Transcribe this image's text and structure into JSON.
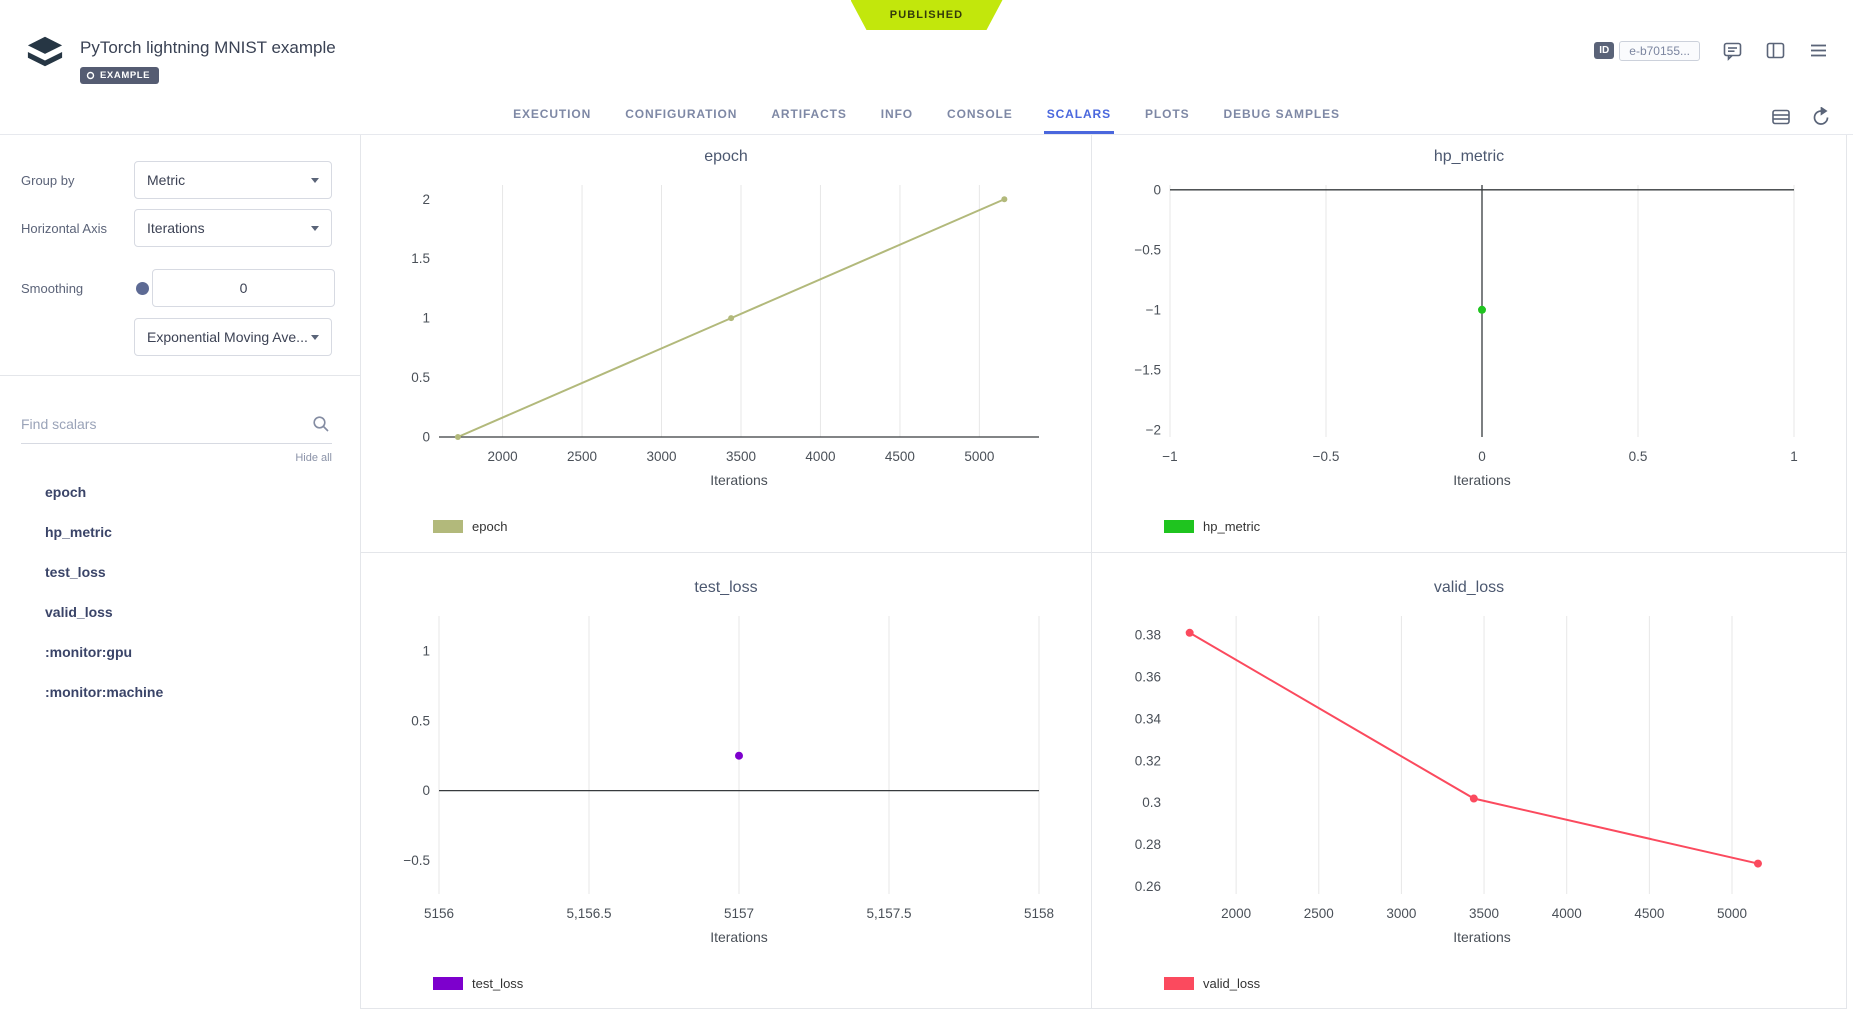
{
  "status_ribbon": "PUBLISHED",
  "header": {
    "title": "PyTorch lightning MNIST example",
    "badge": "EXAMPLE",
    "id_label": "ID",
    "id_value": "e-b70155..."
  },
  "tabs": [
    "EXECUTION",
    "CONFIGURATION",
    "ARTIFACTS",
    "INFO",
    "CONSOLE",
    "SCALARS",
    "PLOTS",
    "DEBUG SAMPLES"
  ],
  "active_tab": "SCALARS",
  "sidebar": {
    "group_by_label": "Group by",
    "group_by_value": "Metric",
    "horizontal_axis_label": "Horizontal Axis",
    "horizontal_axis_value": "Iterations",
    "smoothing_label": "Smoothing",
    "smoothing_value": "0",
    "smoothing_method": "Exponential Moving Ave...",
    "search_placeholder": "Find scalars",
    "hide_all": "Hide all",
    "metrics": [
      "epoch",
      "hp_metric",
      "test_loss",
      "valid_loss",
      ":monitor:gpu",
      ":monitor:machine"
    ]
  },
  "colors": {
    "accent_blue": "#4a67dd",
    "ribbon_lime": "#c2e70c",
    "epoch_line": "#b2b97b",
    "hp_metric_green": "#1fc41f",
    "test_loss_purple": "#7d00cd",
    "valid_loss_red": "#fb4a5e"
  },
  "chart_data": [
    {
      "type": "line",
      "title": "epoch",
      "legend": "epoch",
      "xlabel": "Iterations",
      "color": "#b2b97b",
      "dot_r": 3,
      "x": [
        1719,
        3438,
        5157
      ],
      "y": [
        0,
        1,
        2
      ],
      "xlim": [
        1600,
        5375
      ],
      "ylim": [
        0,
        2.12
      ],
      "xticks": [
        {
          "v": 2000,
          "label": "2000"
        },
        {
          "v": 2500,
          "label": "2500"
        },
        {
          "v": 3000,
          "label": "3000"
        },
        {
          "v": 3500,
          "label": "3500"
        },
        {
          "v": 4000,
          "label": "4000"
        },
        {
          "v": 4500,
          "label": "4500"
        },
        {
          "v": 5000,
          "label": "5000"
        }
      ],
      "yticks": [
        {
          "v": 0,
          "label": "0"
        },
        {
          "v": 0.5,
          "label": "0.5"
        },
        {
          "v": 1,
          "label": "1"
        },
        {
          "v": 1.5,
          "label": "1.5"
        },
        {
          "v": 2,
          "label": "2"
        }
      ]
    },
    {
      "type": "scatter",
      "title": "hp_metric",
      "legend": "hp_metric",
      "xlabel": "Iterations",
      "color": "#1fc41f",
      "dot_r": 4,
      "x": [
        0
      ],
      "y": [
        -1
      ],
      "xlim": [
        -1,
        1
      ],
      "ylim": [
        -2.06,
        0.04
      ],
      "xticks": [
        {
          "v": -1,
          "label": "−1"
        },
        {
          "v": -0.5,
          "label": "−0.5"
        },
        {
          "v": 0,
          "label": "0"
        },
        {
          "v": 0.5,
          "label": "0.5"
        },
        {
          "v": 1,
          "label": "1"
        }
      ],
      "yticks": [
        {
          "v": 0,
          "label": "0"
        },
        {
          "v": -0.5,
          "label": "−0.5"
        },
        {
          "v": -1,
          "label": "−1"
        },
        {
          "v": -1.5,
          "label": "−1.5"
        },
        {
          "v": -2,
          "label": "−2"
        }
      ]
    },
    {
      "type": "scatter",
      "title": "test_loss",
      "legend": "test_loss",
      "xlabel": "Iterations",
      "color": "#7d00cd",
      "dot_r": 4,
      "x": [
        5157
      ],
      "y": [
        0.25
      ],
      "xlim": [
        5156,
        5158
      ],
      "ylim": [
        -0.74,
        1.25
      ],
      "xticks": [
        {
          "v": 5156,
          "label": "5156"
        },
        {
          "v": 5156.5,
          "label": "5,156.5"
        },
        {
          "v": 5157,
          "label": "5157"
        },
        {
          "v": 5157.5,
          "label": "5,157.5"
        },
        {
          "v": 5158,
          "label": "5158"
        }
      ],
      "yticks": [
        {
          "v": 1,
          "label": "1"
        },
        {
          "v": 0.5,
          "label": "0.5"
        },
        {
          "v": 0,
          "label": "0"
        },
        {
          "v": -0.5,
          "label": "−0.5"
        }
      ]
    },
    {
      "type": "line",
      "title": "valid_loss",
      "legend": "valid_loss",
      "xlabel": "Iterations",
      "color": "#fb4a5e",
      "dot_r": 4,
      "x": [
        1719,
        3438,
        5157
      ],
      "y": [
        0.381,
        0.302,
        0.271
      ],
      "xlim": [
        1600,
        5375
      ],
      "ylim": [
        0.2565,
        0.389
      ],
      "xticks": [
        {
          "v": 2000,
          "label": "2000"
        },
        {
          "v": 2500,
          "label": "2500"
        },
        {
          "v": 3000,
          "label": "3000"
        },
        {
          "v": 3500,
          "label": "3500"
        },
        {
          "v": 4000,
          "label": "4000"
        },
        {
          "v": 4500,
          "label": "4500"
        },
        {
          "v": 5000,
          "label": "5000"
        }
      ],
      "yticks": [
        {
          "v": 0.26,
          "label": "0.26"
        },
        {
          "v": 0.28,
          "label": "0.28"
        },
        {
          "v": 0.3,
          "label": "0.3"
        },
        {
          "v": 0.32,
          "label": "0.32"
        },
        {
          "v": 0.34,
          "label": "0.34"
        },
        {
          "v": 0.36,
          "label": "0.36"
        },
        {
          "v": 0.38,
          "label": "0.38"
        }
      ]
    }
  ]
}
